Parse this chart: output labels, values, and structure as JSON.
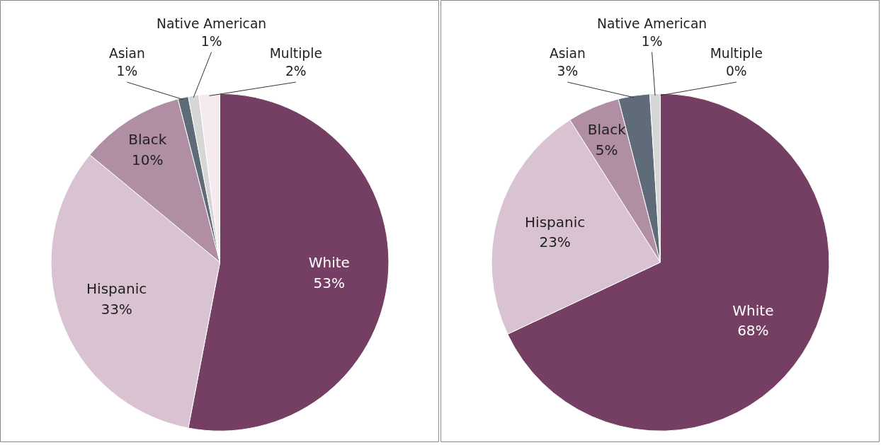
{
  "chart_data": [
    {
      "type": "pie",
      "categories": [
        "White",
        "Hispanic",
        "Black",
        "Asian",
        "Native American",
        "Multiple"
      ],
      "values": [
        53,
        33,
        10,
        1,
        1,
        2
      ],
      "value_labels": [
        "53%",
        "33%",
        "10%",
        "1%",
        "1%",
        "2%"
      ],
      "colors": [
        "#753f63",
        "#d9c3d2",
        "#b08fa5",
        "#5f6b78",
        "#d6d6d6",
        "#f6eaf1"
      ]
    },
    {
      "type": "pie",
      "categories": [
        "White",
        "Hispanic",
        "Black",
        "Asian",
        "Native American",
        "Multiple"
      ],
      "values": [
        68,
        23,
        5,
        3,
        1,
        0
      ],
      "value_labels": [
        "68%",
        "23%",
        "5%",
        "3%",
        "1%",
        "0%"
      ],
      "colors": [
        "#753f63",
        "#d9c3d2",
        "#b08fa5",
        "#5f6b78",
        "#d6d6d6",
        "#f6eaf1"
      ]
    }
  ]
}
